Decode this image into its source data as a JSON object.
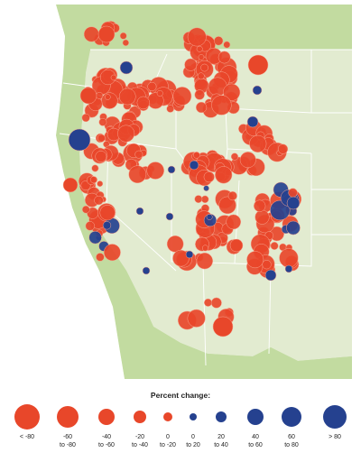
{
  "legend": {
    "title": "Percent change:",
    "items": [
      {
        "lines": [
          "< -80"
        ],
        "color": "#e8472a"
      },
      {
        "lines": [
          "-60",
          "to -80"
        ],
        "color": "#e8472a"
      },
      {
        "lines": [
          "-40",
          "to -60"
        ],
        "color": "#e8472a"
      },
      {
        "lines": [
          "-20",
          "to -40"
        ],
        "color": "#e8472a"
      },
      {
        "lines": [
          "0",
          "to -20"
        ],
        "color": "#e8472a"
      },
      {
        "lines": [
          "0",
          "to 20"
        ],
        "color": "#25418f"
      },
      {
        "lines": [
          "20",
          "to 40"
        ],
        "color": "#25418f"
      },
      {
        "lines": [
          "40",
          "to 60"
        ],
        "color": "#25418f"
      },
      {
        "lines": [
          "60",
          "to 80"
        ],
        "color": "#25418f"
      },
      {
        "lines": [
          "> 80"
        ],
        "color": "#25418f"
      }
    ]
  }
}
